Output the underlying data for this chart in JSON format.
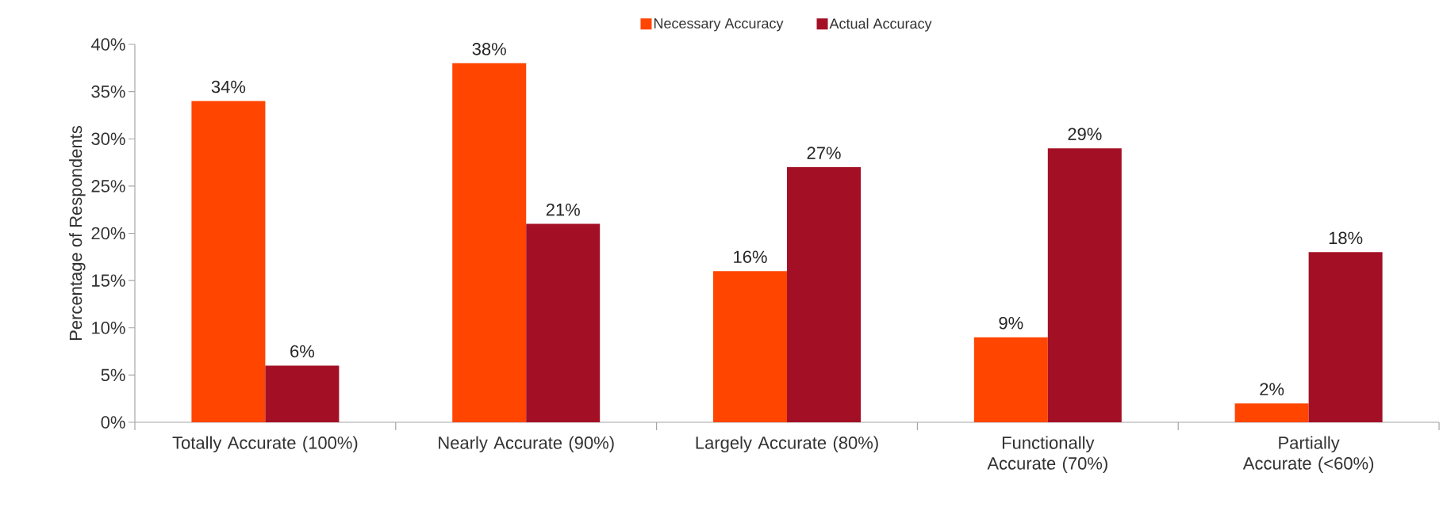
{
  "chart_data": {
    "type": "bar",
    "ylabel": "Percentage of Respondents",
    "categories": [
      "Totally Accurate (100%)",
      "Nearly Accurate (90%)",
      "Largely Accurate (80%)",
      "Functionally Accurate (70%)",
      "Partially Accurate (<60%)"
    ],
    "series": [
      {
        "name": "Necessary Accuracy",
        "color": "#ff4500",
        "values": [
          34,
          38,
          16,
          9,
          2
        ],
        "value_labels": [
          "34%",
          "38%",
          "16%",
          "9%",
          "2%"
        ]
      },
      {
        "name": "Actual Accuracy",
        "color": "#a31025",
        "values": [
          6,
          21,
          27,
          29,
          18
        ],
        "value_labels": [
          "6%",
          "21%",
          "27%",
          "29%",
          "18%"
        ]
      }
    ],
    "ylim": [
      0,
      40
    ],
    "yticks": [
      {
        "value": 0,
        "label": "0%"
      },
      {
        "value": 5,
        "label": "5%"
      },
      {
        "value": 10,
        "label": "10%"
      },
      {
        "value": 15,
        "label": "15%"
      },
      {
        "value": 20,
        "label": "20%"
      },
      {
        "value": 25,
        "label": "25%"
      },
      {
        "value": 30,
        "label": "30%"
      },
      {
        "value": 35,
        "label": "35%"
      },
      {
        "value": 40,
        "label": "40%"
      }
    ],
    "legend": "top",
    "grid": false
  }
}
